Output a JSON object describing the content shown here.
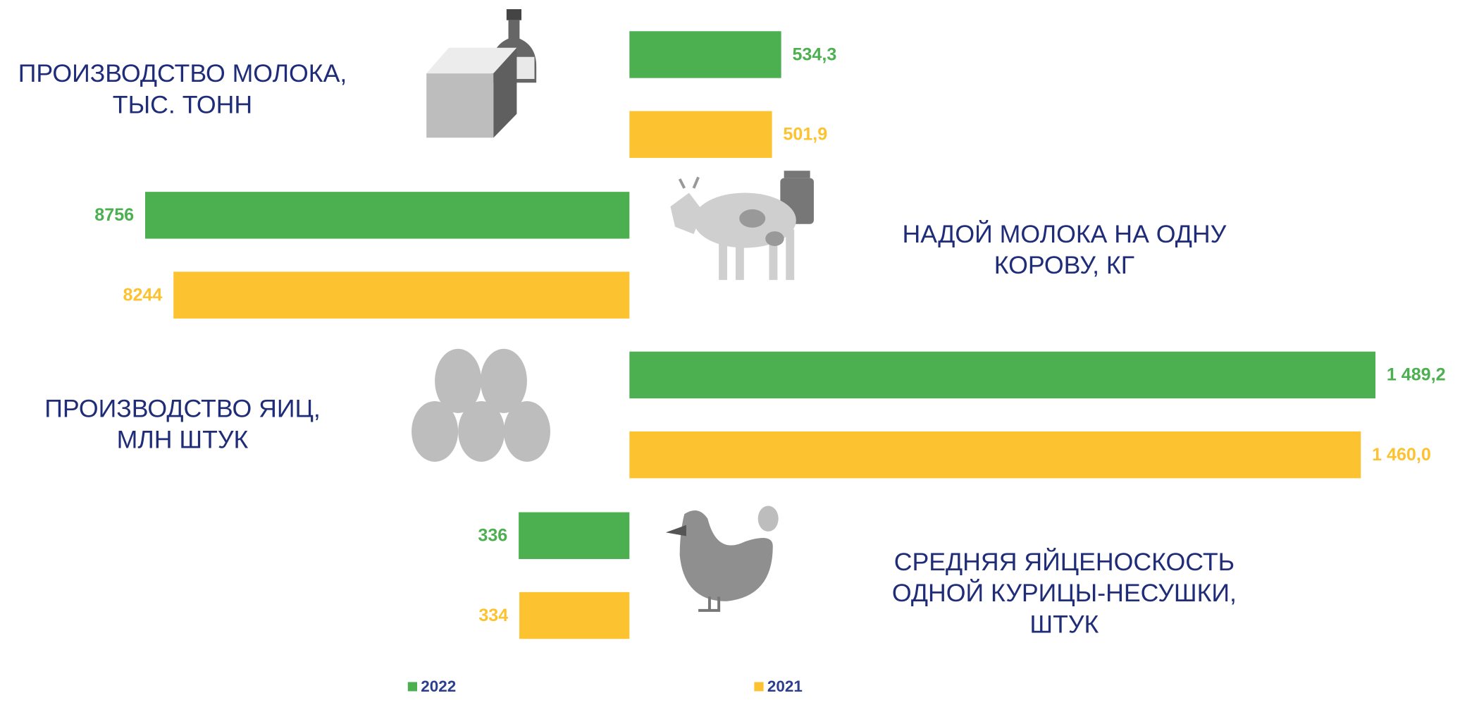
{
  "chart_data": {
    "type": "bar",
    "categories": [
      [
        "ПРОИЗВОДСТВО МОЛОКА,",
        "ТЫС. ТОНН"
      ],
      [
        "НАДОЙ МОЛОКА НА ОДНУ",
        "КОРОВУ, КГ"
      ],
      [
        "ПРОИЗВОДСТВО ЯИЦ,",
        "МЛН ШТУК"
      ],
      [
        "СРЕДНЯЯ ЯЙЦЕНОСКОСТЬ",
        "ОДНОЙ КУРИЦЫ-НЕСУШКИ,",
        "ШТУК"
      ]
    ],
    "series": [
      {
        "name": "2022",
        "color": "#4caf50",
        "values": [
          534.3,
          8756,
          1489.2,
          336
        ],
        "value_labels": [
          "534,3",
          "8756",
          "1 489,2",
          "336"
        ]
      },
      {
        "name": "2021",
        "color": "#fdc22f",
        "values": [
          501.9,
          8244,
          1460.0,
          334
        ],
        "value_labels": [
          "501,9",
          "8244",
          "1 460,0",
          "334"
        ]
      }
    ]
  }
}
